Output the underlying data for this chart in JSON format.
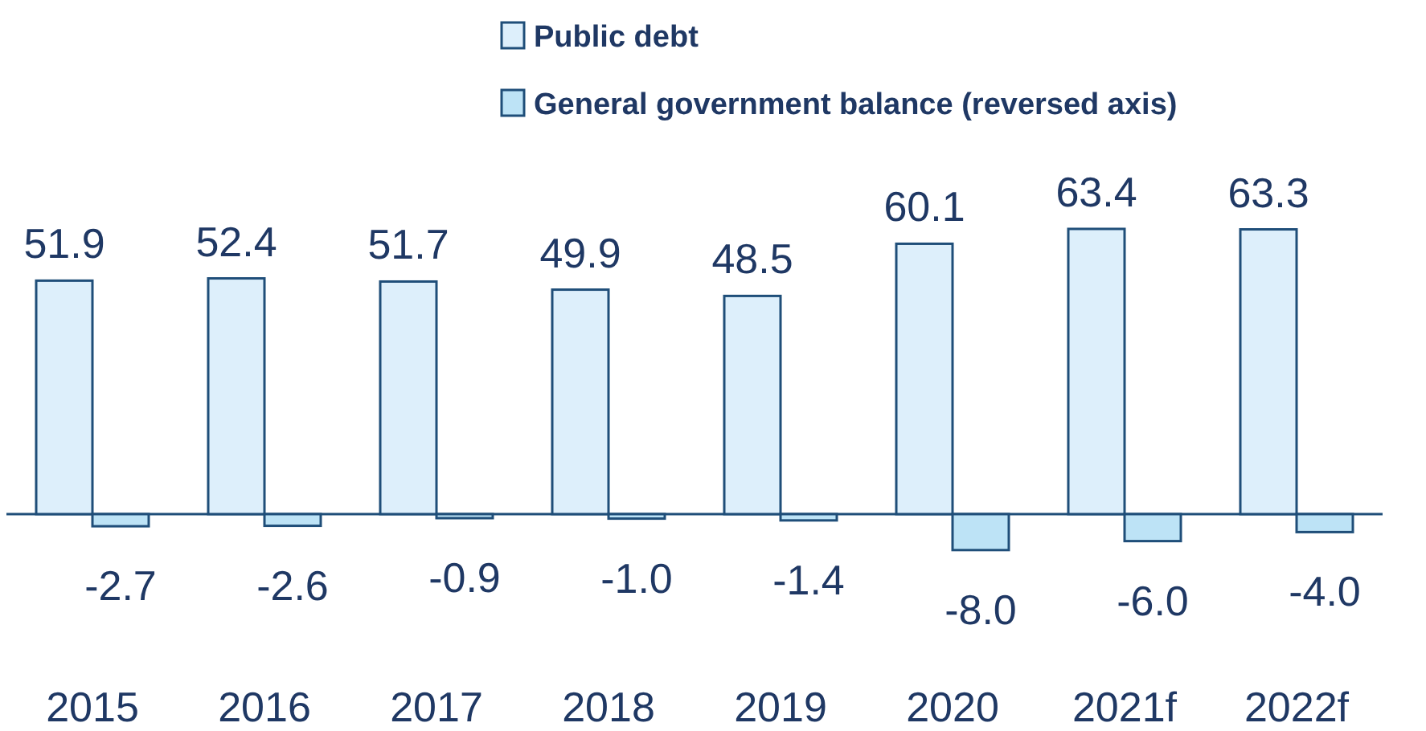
{
  "chart_data": {
    "type": "bar",
    "categories": [
      "2015",
      "2016",
      "2017",
      "2018",
      "2019",
      "2020",
      "2021f",
      "2022f"
    ],
    "series": [
      {
        "name": "Public debt",
        "color": "#ddeffb",
        "values": [
          51.9,
          52.4,
          51.7,
          49.9,
          48.5,
          60.1,
          63.4,
          63.3
        ],
        "value_labels": [
          "51.9",
          "52.4",
          "51.7",
          "49.9",
          "48.5",
          "60.1",
          "63.4",
          "63.3"
        ]
      },
      {
        "name": "General government balance (reversed axis)",
        "color": "#bde3f6",
        "values": [
          -2.7,
          -2.6,
          -0.9,
          -1.0,
          -1.4,
          -8.0,
          -6.0,
          -4.0
        ],
        "value_labels": [
          "-2.7",
          "-2.6",
          "-0.9",
          "-1.0",
          "-1.4",
          "-8.0",
          "-6.0",
          "-4.0"
        ]
      }
    ],
    "ref_lines": [
      {
        "axis": "y",
        "value": 0,
        "color": "#1f4e79"
      }
    ],
    "legend": "top right"
  }
}
